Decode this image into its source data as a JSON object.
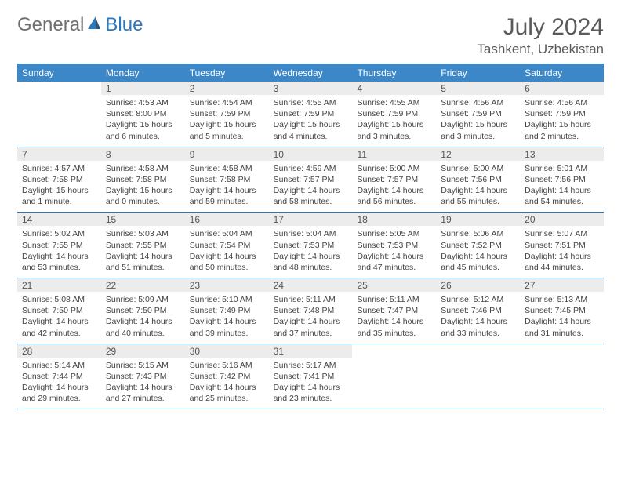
{
  "logo": {
    "text1": "General",
    "text2": "Blue"
  },
  "title": "July 2024",
  "location": "Tashkent, Uzbekistan",
  "colors": {
    "header_bg": "#3b87c8",
    "rule": "#2a78bd",
    "daynum_bg": "#ececec",
    "text": "#555555",
    "logo_gray": "#6f6f6f",
    "logo_blue": "#2a78bd"
  },
  "day_headers": [
    "Sunday",
    "Monday",
    "Tuesday",
    "Wednesday",
    "Thursday",
    "Friday",
    "Saturday"
  ],
  "weeks": [
    [
      {
        "n": "",
        "sunrise": "",
        "sunset": "",
        "daylight": ""
      },
      {
        "n": "1",
        "sunrise": "Sunrise: 4:53 AM",
        "sunset": "Sunset: 8:00 PM",
        "daylight": "Daylight: 15 hours and 6 minutes."
      },
      {
        "n": "2",
        "sunrise": "Sunrise: 4:54 AM",
        "sunset": "Sunset: 7:59 PM",
        "daylight": "Daylight: 15 hours and 5 minutes."
      },
      {
        "n": "3",
        "sunrise": "Sunrise: 4:55 AM",
        "sunset": "Sunset: 7:59 PM",
        "daylight": "Daylight: 15 hours and 4 minutes."
      },
      {
        "n": "4",
        "sunrise": "Sunrise: 4:55 AM",
        "sunset": "Sunset: 7:59 PM",
        "daylight": "Daylight: 15 hours and 3 minutes."
      },
      {
        "n": "5",
        "sunrise": "Sunrise: 4:56 AM",
        "sunset": "Sunset: 7:59 PM",
        "daylight": "Daylight: 15 hours and 3 minutes."
      },
      {
        "n": "6",
        "sunrise": "Sunrise: 4:56 AM",
        "sunset": "Sunset: 7:59 PM",
        "daylight": "Daylight: 15 hours and 2 minutes."
      }
    ],
    [
      {
        "n": "7",
        "sunrise": "Sunrise: 4:57 AM",
        "sunset": "Sunset: 7:58 PM",
        "daylight": "Daylight: 15 hours and 1 minute."
      },
      {
        "n": "8",
        "sunrise": "Sunrise: 4:58 AM",
        "sunset": "Sunset: 7:58 PM",
        "daylight": "Daylight: 15 hours and 0 minutes."
      },
      {
        "n": "9",
        "sunrise": "Sunrise: 4:58 AM",
        "sunset": "Sunset: 7:58 PM",
        "daylight": "Daylight: 14 hours and 59 minutes."
      },
      {
        "n": "10",
        "sunrise": "Sunrise: 4:59 AM",
        "sunset": "Sunset: 7:57 PM",
        "daylight": "Daylight: 14 hours and 58 minutes."
      },
      {
        "n": "11",
        "sunrise": "Sunrise: 5:00 AM",
        "sunset": "Sunset: 7:57 PM",
        "daylight": "Daylight: 14 hours and 56 minutes."
      },
      {
        "n": "12",
        "sunrise": "Sunrise: 5:00 AM",
        "sunset": "Sunset: 7:56 PM",
        "daylight": "Daylight: 14 hours and 55 minutes."
      },
      {
        "n": "13",
        "sunrise": "Sunrise: 5:01 AM",
        "sunset": "Sunset: 7:56 PM",
        "daylight": "Daylight: 14 hours and 54 minutes."
      }
    ],
    [
      {
        "n": "14",
        "sunrise": "Sunrise: 5:02 AM",
        "sunset": "Sunset: 7:55 PM",
        "daylight": "Daylight: 14 hours and 53 minutes."
      },
      {
        "n": "15",
        "sunrise": "Sunrise: 5:03 AM",
        "sunset": "Sunset: 7:55 PM",
        "daylight": "Daylight: 14 hours and 51 minutes."
      },
      {
        "n": "16",
        "sunrise": "Sunrise: 5:04 AM",
        "sunset": "Sunset: 7:54 PM",
        "daylight": "Daylight: 14 hours and 50 minutes."
      },
      {
        "n": "17",
        "sunrise": "Sunrise: 5:04 AM",
        "sunset": "Sunset: 7:53 PM",
        "daylight": "Daylight: 14 hours and 48 minutes."
      },
      {
        "n": "18",
        "sunrise": "Sunrise: 5:05 AM",
        "sunset": "Sunset: 7:53 PM",
        "daylight": "Daylight: 14 hours and 47 minutes."
      },
      {
        "n": "19",
        "sunrise": "Sunrise: 5:06 AM",
        "sunset": "Sunset: 7:52 PM",
        "daylight": "Daylight: 14 hours and 45 minutes."
      },
      {
        "n": "20",
        "sunrise": "Sunrise: 5:07 AM",
        "sunset": "Sunset: 7:51 PM",
        "daylight": "Daylight: 14 hours and 44 minutes."
      }
    ],
    [
      {
        "n": "21",
        "sunrise": "Sunrise: 5:08 AM",
        "sunset": "Sunset: 7:50 PM",
        "daylight": "Daylight: 14 hours and 42 minutes."
      },
      {
        "n": "22",
        "sunrise": "Sunrise: 5:09 AM",
        "sunset": "Sunset: 7:50 PM",
        "daylight": "Daylight: 14 hours and 40 minutes."
      },
      {
        "n": "23",
        "sunrise": "Sunrise: 5:10 AM",
        "sunset": "Sunset: 7:49 PM",
        "daylight": "Daylight: 14 hours and 39 minutes."
      },
      {
        "n": "24",
        "sunrise": "Sunrise: 5:11 AM",
        "sunset": "Sunset: 7:48 PM",
        "daylight": "Daylight: 14 hours and 37 minutes."
      },
      {
        "n": "25",
        "sunrise": "Sunrise: 5:11 AM",
        "sunset": "Sunset: 7:47 PM",
        "daylight": "Daylight: 14 hours and 35 minutes."
      },
      {
        "n": "26",
        "sunrise": "Sunrise: 5:12 AM",
        "sunset": "Sunset: 7:46 PM",
        "daylight": "Daylight: 14 hours and 33 minutes."
      },
      {
        "n": "27",
        "sunrise": "Sunrise: 5:13 AM",
        "sunset": "Sunset: 7:45 PM",
        "daylight": "Daylight: 14 hours and 31 minutes."
      }
    ],
    [
      {
        "n": "28",
        "sunrise": "Sunrise: 5:14 AM",
        "sunset": "Sunset: 7:44 PM",
        "daylight": "Daylight: 14 hours and 29 minutes."
      },
      {
        "n": "29",
        "sunrise": "Sunrise: 5:15 AM",
        "sunset": "Sunset: 7:43 PM",
        "daylight": "Daylight: 14 hours and 27 minutes."
      },
      {
        "n": "30",
        "sunrise": "Sunrise: 5:16 AM",
        "sunset": "Sunset: 7:42 PM",
        "daylight": "Daylight: 14 hours and 25 minutes."
      },
      {
        "n": "31",
        "sunrise": "Sunrise: 5:17 AM",
        "sunset": "Sunset: 7:41 PM",
        "daylight": "Daylight: 14 hours and 23 minutes."
      },
      {
        "n": "",
        "sunrise": "",
        "sunset": "",
        "daylight": ""
      },
      {
        "n": "",
        "sunrise": "",
        "sunset": "",
        "daylight": ""
      },
      {
        "n": "",
        "sunrise": "",
        "sunset": "",
        "daylight": ""
      }
    ]
  ]
}
